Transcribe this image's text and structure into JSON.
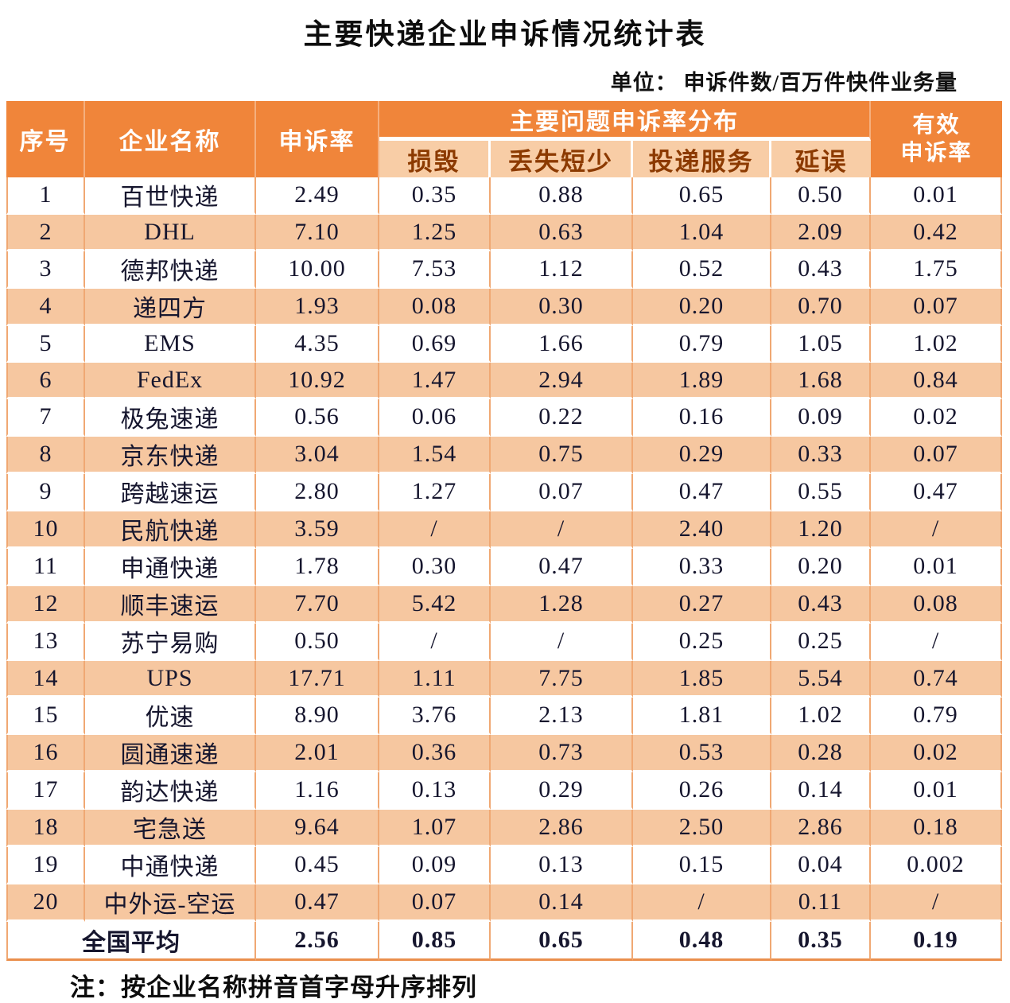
{
  "title": "主要快递企业申诉情况统计表",
  "unit_label": "单位： 申诉件数/百万件快件业务量",
  "note": "注：按企业名称拼音首字母升序排列",
  "colors": {
    "header_orange": "#f0853a",
    "subheader_peach": "#f8cda6",
    "row_peach": "#f6c7a0",
    "subheader_text": "#8c3a00",
    "body_text": "#16162e",
    "grid_line": "#f0a873"
  },
  "table": {
    "headers": {
      "index": "序号",
      "company": "企业名称",
      "complaint_rate": "申诉率",
      "problem_group": "主要问题申诉率分布",
      "sub": [
        "损毁",
        "丢失短少",
        "投递服务",
        "延误"
      ],
      "effective_line1": "有效",
      "effective_line2": "申诉率"
    },
    "rows": [
      {
        "no": "1",
        "company": "百世快递",
        "rate": "2.49",
        "damage": "0.35",
        "loss": "0.88",
        "delivery": "0.65",
        "delay": "0.50",
        "effective": "0.01"
      },
      {
        "no": "2",
        "company": "DHL",
        "rate": "7.10",
        "damage": "1.25",
        "loss": "0.63",
        "delivery": "1.04",
        "delay": "2.09",
        "effective": "0.42"
      },
      {
        "no": "3",
        "company": "德邦快递",
        "rate": "10.00",
        "damage": "7.53",
        "loss": "1.12",
        "delivery": "0.52",
        "delay": "0.43",
        "effective": "1.75"
      },
      {
        "no": "4",
        "company": "递四方",
        "rate": "1.93",
        "damage": "0.08",
        "loss": "0.30",
        "delivery": "0.20",
        "delay": "0.70",
        "effective": "0.07"
      },
      {
        "no": "5",
        "company": "EMS",
        "rate": "4.35",
        "damage": "0.69",
        "loss": "1.66",
        "delivery": "0.79",
        "delay": "1.05",
        "effective": "1.02"
      },
      {
        "no": "6",
        "company": "FedEx",
        "rate": "10.92",
        "damage": "1.47",
        "loss": "2.94",
        "delivery": "1.89",
        "delay": "1.68",
        "effective": "0.84"
      },
      {
        "no": "7",
        "company": "极兔速递",
        "rate": "0.56",
        "damage": "0.06",
        "loss": "0.22",
        "delivery": "0.16",
        "delay": "0.09",
        "effective": "0.02"
      },
      {
        "no": "8",
        "company": "京东快递",
        "rate": "3.04",
        "damage": "1.54",
        "loss": "0.75",
        "delivery": "0.29",
        "delay": "0.33",
        "effective": "0.07"
      },
      {
        "no": "9",
        "company": "跨越速运",
        "rate": "2.80",
        "damage": "1.27",
        "loss": "0.07",
        "delivery": "0.47",
        "delay": "0.55",
        "effective": "0.47"
      },
      {
        "no": "10",
        "company": "民航快递",
        "rate": "3.59",
        "damage": "/",
        "loss": "/",
        "delivery": "2.40",
        "delay": "1.20",
        "effective": "/"
      },
      {
        "no": "11",
        "company": "申通快递",
        "rate": "1.78",
        "damage": "0.30",
        "loss": "0.47",
        "delivery": "0.33",
        "delay": "0.20",
        "effective": "0.01"
      },
      {
        "no": "12",
        "company": "顺丰速运",
        "rate": "7.70",
        "damage": "5.42",
        "loss": "1.28",
        "delivery": "0.27",
        "delay": "0.43",
        "effective": "0.08"
      },
      {
        "no": "13",
        "company": "苏宁易购",
        "rate": "0.50",
        "damage": "/",
        "loss": "/",
        "delivery": "0.25",
        "delay": "0.25",
        "effective": "/"
      },
      {
        "no": "14",
        "company": "UPS",
        "rate": "17.71",
        "damage": "1.11",
        "loss": "7.75",
        "delivery": "1.85",
        "delay": "5.54",
        "effective": "0.74"
      },
      {
        "no": "15",
        "company": "优速",
        "rate": "8.90",
        "damage": "3.76",
        "loss": "2.13",
        "delivery": "1.81",
        "delay": "1.02",
        "effective": "0.79"
      },
      {
        "no": "16",
        "company": "圆通速递",
        "rate": "2.01",
        "damage": "0.36",
        "loss": "0.73",
        "delivery": "0.53",
        "delay": "0.28",
        "effective": "0.02"
      },
      {
        "no": "17",
        "company": "韵达快递",
        "rate": "1.16",
        "damage": "0.13",
        "loss": "0.29",
        "delivery": "0.26",
        "delay": "0.14",
        "effective": "0.01"
      },
      {
        "no": "18",
        "company": "宅急送",
        "rate": "9.64",
        "damage": "1.07",
        "loss": "2.86",
        "delivery": "2.50",
        "delay": "2.86",
        "effective": "0.18"
      },
      {
        "no": "19",
        "company": "中通快递",
        "rate": "0.45",
        "damage": "0.09",
        "loss": "0.13",
        "delivery": "0.15",
        "delay": "0.04",
        "effective": "0.002"
      },
      {
        "no": "20",
        "company": "中外运-空运",
        "rate": "0.47",
        "damage": "0.07",
        "loss": "0.14",
        "delivery": "/",
        "delay": "0.11",
        "effective": "/"
      }
    ],
    "summary": {
      "label": "全国平均",
      "rate": "2.56",
      "damage": "0.85",
      "loss": "0.65",
      "delivery": "0.48",
      "delay": "0.35",
      "effective": "0.19"
    }
  }
}
